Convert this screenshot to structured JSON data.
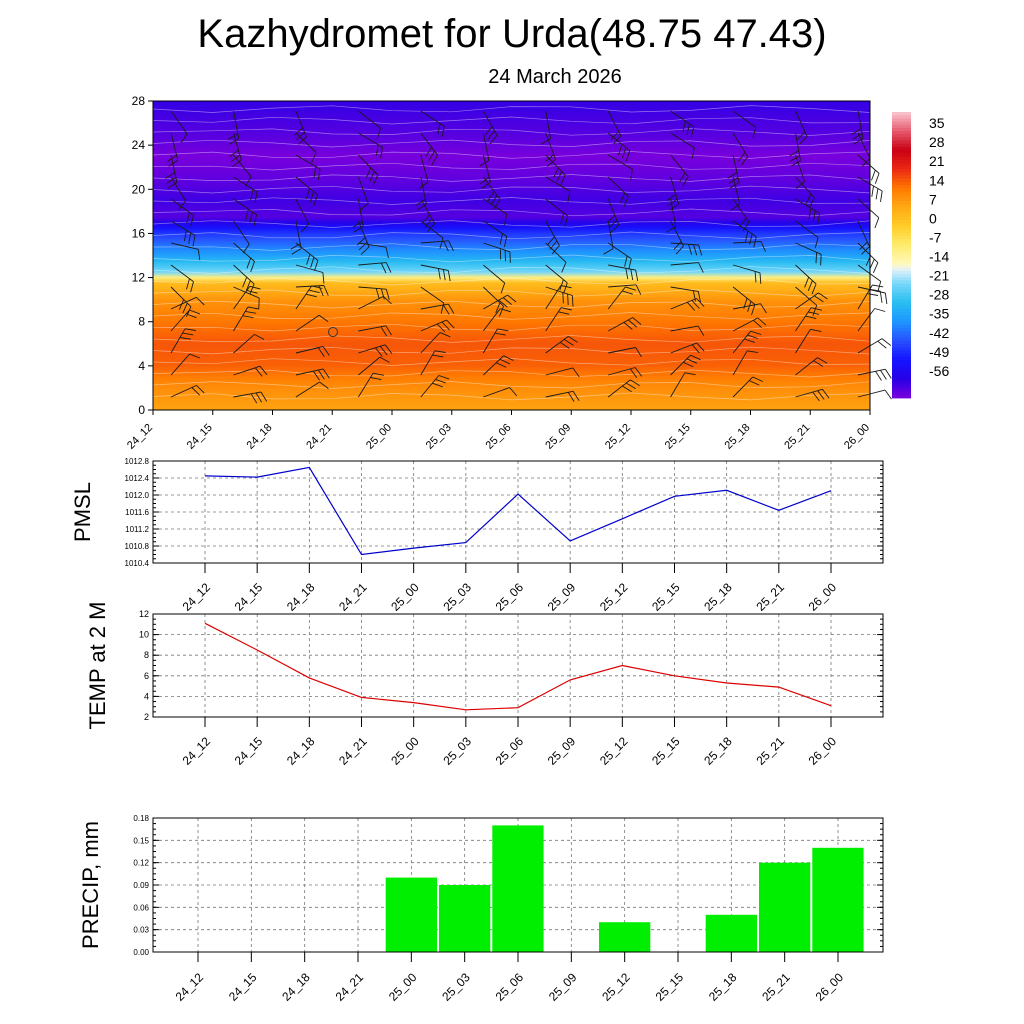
{
  "title": "Kazhydromet for Urda(48.75 47.43)",
  "subtitle": "24 March 2026",
  "colors": {
    "pmsl_line": "#0000cc",
    "temp_line": "#dd0000",
    "precip_bar": "#00ee00"
  },
  "chart_data": [
    {
      "type": "heatmap",
      "name": "temperature-wind-cross-section",
      "x_ticks": [
        "24_12",
        "24_15",
        "24_18",
        "24_21",
        "25_00",
        "25_03",
        "25_06",
        "25_09",
        "25_12",
        "25_15",
        "25_18",
        "25_21",
        "26_00"
      ],
      "y_ticks": [
        "0",
        "4",
        "8",
        "12",
        "16",
        "20",
        "24",
        "28"
      ],
      "ylim": [
        0,
        28
      ],
      "colorbar_labels": [
        "35",
        "28",
        "21",
        "14",
        "7",
        "0",
        "-7",
        "-14",
        "-21",
        "-28",
        "-35",
        "-42",
        "-49",
        "-56"
      ],
      "colorbar_range": [
        -63,
        42
      ],
      "temperature_profile": {
        "height": [
          0,
          2,
          4,
          6,
          8,
          10,
          11.8,
          12.2,
          14,
          16,
          17.5,
          19,
          21,
          23,
          25,
          28
        ],
        "value": [
          8,
          11,
          16,
          17,
          14,
          10,
          2,
          -19,
          -33,
          -45,
          -60,
          -58,
          -61,
          -63,
          -60,
          -57
        ]
      }
    },
    {
      "type": "line",
      "name": "pmsl",
      "ylabel": "PMSL",
      "categories": [
        "24_12",
        "24_15",
        "24_18",
        "24_21",
        "25_00",
        "25_03",
        "25_06",
        "25_09",
        "25_12",
        "25_15",
        "25_18",
        "25_21",
        "26_00"
      ],
      "y_ticks": [
        "1010.4",
        "1010.8",
        "1011.2",
        "1011.6",
        "1012.0",
        "1012.4",
        "1012.8"
      ],
      "ylim": [
        1010.4,
        1012.8
      ],
      "values": [
        1012.45,
        1012.42,
        1012.65,
        1010.6,
        1010.75,
        1010.88,
        1012.02,
        1010.92,
        1011.44,
        1011.97,
        1012.11,
        1011.64,
        1012.1
      ]
    },
    {
      "type": "line",
      "name": "temp-2m",
      "ylabel": "TEMP at 2 M",
      "categories": [
        "24_12",
        "24_15",
        "24_18",
        "24_21",
        "25_00",
        "25_03",
        "25_06",
        "25_09",
        "25_12",
        "25_15",
        "25_18",
        "25_21",
        "26_00"
      ],
      "y_ticks": [
        "2",
        "4",
        "6",
        "8",
        "10",
        "12"
      ],
      "ylim": [
        2,
        12
      ],
      "values": [
        11.1,
        8.5,
        5.8,
        3.9,
        3.4,
        2.7,
        2.9,
        5.6,
        7.0,
        6.0,
        5.3,
        4.9,
        3.1
      ]
    },
    {
      "type": "bar",
      "name": "precip",
      "ylabel": "PRECIP, mm",
      "categories": [
        "24_12",
        "24_15",
        "24_18",
        "24_21",
        "25_00",
        "25_03",
        "25_06",
        "25_09",
        "25_12",
        "25_15",
        "25_18",
        "25_21",
        "26_00"
      ],
      "y_ticks": [
        "0.00",
        "0.03",
        "0.06",
        "0.09",
        "0.12",
        "0.15",
        "0.18"
      ],
      "ylim": [
        0,
        0.18
      ],
      "values": [
        0,
        0,
        0,
        0,
        0.1,
        0.09,
        0.17,
        0,
        0.04,
        0,
        0.05,
        0.12,
        0.14
      ]
    }
  ]
}
